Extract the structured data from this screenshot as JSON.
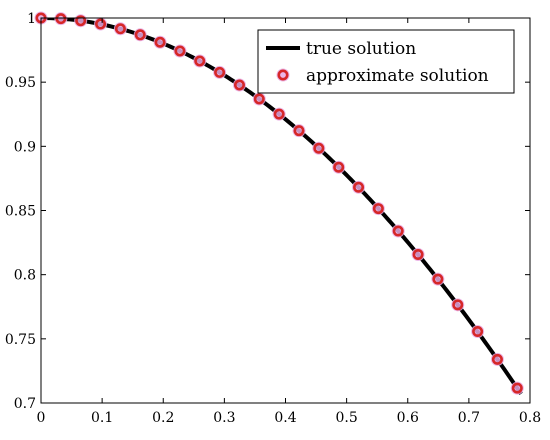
{
  "chart_data": {
    "type": "line",
    "title": "",
    "xlabel": "",
    "ylabel": "",
    "xlim": [
      0,
      0.8
    ],
    "ylim": [
      0.7,
      1.0
    ],
    "xticks": [
      0,
      0.1,
      0.2,
      0.3,
      0.4,
      0.5,
      0.6,
      0.7,
      0.8
    ],
    "xtick_labels": [
      "0",
      "0.1",
      "0.2",
      "0.3",
      "0.4",
      "0.5",
      "0.6",
      "0.7",
      "0.8"
    ],
    "yticks": [
      0.7,
      0.75,
      0.8,
      0.85,
      0.9,
      0.95,
      1.0
    ],
    "ytick_labels": [
      "0.7",
      "0.75",
      "0.8",
      "0.85",
      "0.9",
      "0.95",
      "1"
    ],
    "grid": false,
    "legend_position": "top-right",
    "series": [
      {
        "name": "true solution",
        "kind": "line",
        "color": "#000000",
        "function": "cos(x)"
      },
      {
        "name": "approximate solution",
        "kind": "markers",
        "color": "#d62728",
        "halo_color": "#e8a9e3",
        "x": [
          0.0,
          0.0325,
          0.0649,
          0.0974,
          0.1299,
          0.1623,
          0.1948,
          0.2273,
          0.2597,
          0.2922,
          0.3247,
          0.3571,
          0.3896,
          0.4221,
          0.4545,
          0.487,
          0.5195,
          0.5519,
          0.5844,
          0.6169,
          0.6493,
          0.6818,
          0.7143,
          0.7467,
          0.7792
        ],
        "y": [
          1.0,
          0.9995,
          0.9979,
          0.9953,
          0.9916,
          0.9869,
          0.9811,
          0.9743,
          0.9665,
          0.9576,
          0.9478,
          0.9369,
          0.9251,
          0.9122,
          0.8985,
          0.8837,
          0.8681,
          0.8515,
          0.834,
          0.8157,
          0.7965,
          0.7765,
          0.7557,
          0.734,
          0.7116
        ]
      }
    ]
  }
}
